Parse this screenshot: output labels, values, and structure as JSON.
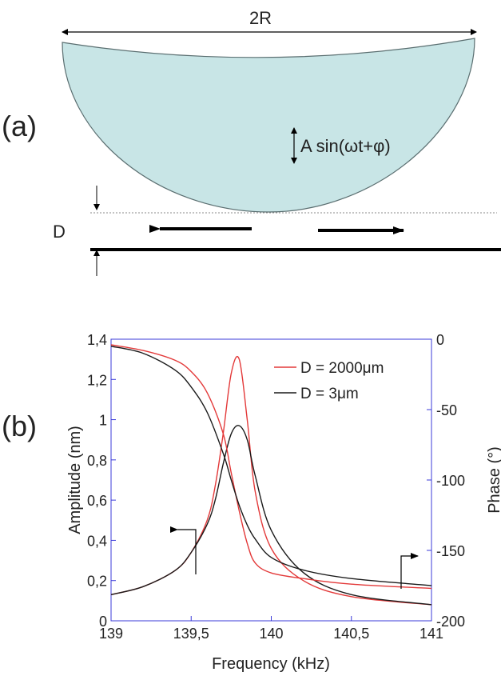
{
  "panel_a": {
    "label": "(a)",
    "width_label": "2R",
    "oscillation_label": "A sin(ωt+φ)",
    "gap_label": "D",
    "colors": {
      "sphere_fill": "#c8e5e6",
      "sphere_stroke": "#5a6e70",
      "dotted_line": "#8a8a8a"
    }
  },
  "panel_b": {
    "label": "(b)"
  },
  "chart_data": {
    "type": "line",
    "xlabel": "Frequency (kHz)",
    "ylabel_left": "Amplitude (nm)",
    "ylabel_right": "Phase (°)",
    "xlim": [
      139,
      141
    ],
    "ylim_left": [
      0,
      1.4
    ],
    "ylim_right": [
      -200,
      0
    ],
    "x_ticks": [
      139,
      139.5,
      140,
      140.5,
      141
    ],
    "x_tick_labels": [
      "139",
      "139,5",
      "140",
      "140,5",
      "141"
    ],
    "y_left_ticks": [
      0,
      0.2,
      0.4,
      0.6,
      0.8,
      1,
      1.2,
      1.4
    ],
    "y_left_tick_labels": [
      "0",
      "0,2",
      "0,4",
      "0,6",
      "0,8",
      "1",
      "1,2",
      "1,4"
    ],
    "y_right_ticks": [
      0,
      -50,
      -100,
      -150,
      -200
    ],
    "y_right_tick_labels": [
      "0",
      "-50",
      "-100",
      "-150",
      "-200"
    ],
    "grid": false,
    "legend_position": "top-right",
    "axis_color": "#3b3bd9",
    "series": [
      {
        "name": "D = 2000μm",
        "color": "#e33a3a",
        "axis": "left",
        "x": [
          139.0,
          139.2,
          139.4,
          139.5,
          139.6,
          139.65,
          139.7,
          139.75,
          139.8,
          139.85,
          139.9,
          140.0,
          140.2,
          140.5,
          141.0
        ],
        "values": [
          0.13,
          0.17,
          0.25,
          0.34,
          0.5,
          0.67,
          0.93,
          1.23,
          1.3,
          1.0,
          0.64,
          0.36,
          0.2,
          0.12,
          0.08
        ]
      },
      {
        "name": "D = 3μm",
        "color": "#1a1a1a",
        "axis": "left",
        "x": [
          139.0,
          139.2,
          139.4,
          139.5,
          139.6,
          139.65,
          139.7,
          139.75,
          139.8,
          139.85,
          139.9,
          140.0,
          140.2,
          140.5,
          141.0
        ],
        "values": [
          0.13,
          0.17,
          0.25,
          0.34,
          0.48,
          0.6,
          0.78,
          0.93,
          0.97,
          0.9,
          0.72,
          0.45,
          0.24,
          0.13,
          0.08
        ]
      },
      {
        "name": "",
        "color": "#e33a3a",
        "axis": "right",
        "x": [
          139.0,
          139.2,
          139.4,
          139.5,
          139.6,
          139.7,
          139.75,
          139.8,
          139.85,
          139.9,
          140.0,
          140.2,
          140.5,
          141.0
        ],
        "values": [
          -4,
          -8,
          -15,
          -23,
          -38,
          -67,
          -95,
          -122,
          -145,
          -159,
          -166,
          -170,
          -174,
          -177
        ]
      },
      {
        "name": "",
        "color": "#1a1a1a",
        "axis": "right",
        "x": [
          139.0,
          139.2,
          139.4,
          139.5,
          139.6,
          139.7,
          139.75,
          139.8,
          139.85,
          139.9,
          140.0,
          140.2,
          140.5,
          141.0
        ],
        "values": [
          -5,
          -10,
          -22,
          -34,
          -52,
          -81,
          -100,
          -118,
          -132,
          -142,
          -155,
          -164,
          -170,
          -175
        ]
      }
    ]
  }
}
